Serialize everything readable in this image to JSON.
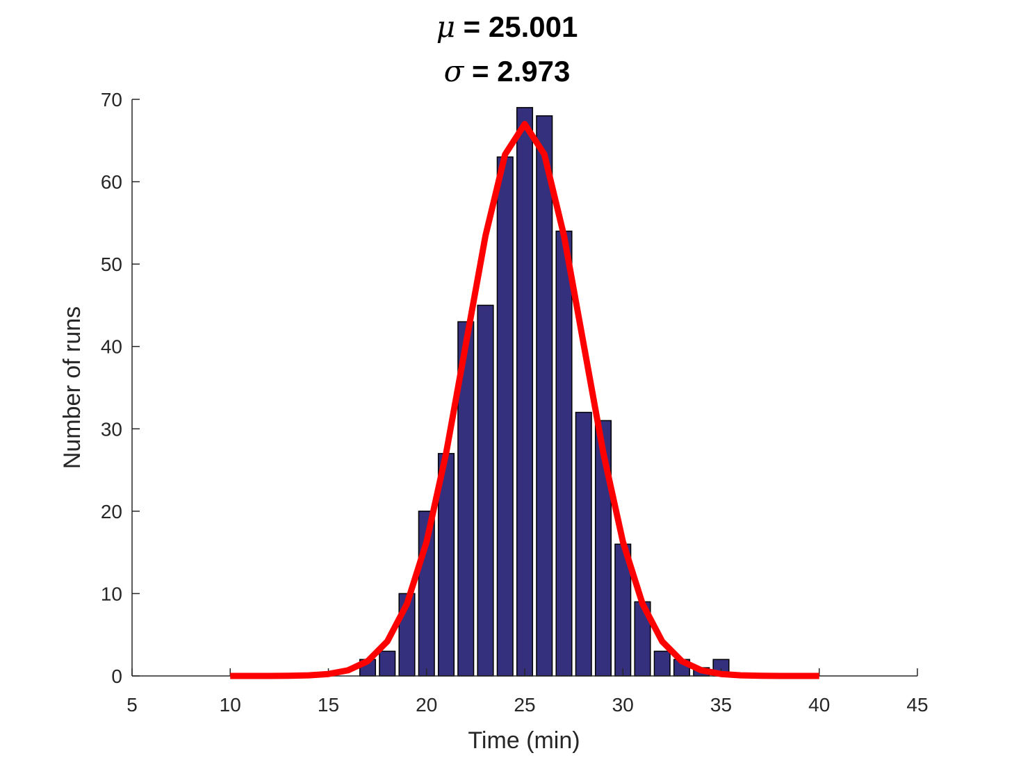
{
  "title": {
    "line1_symbol": "μ",
    "line1_text": " = 25.001",
    "line2_symbol": "σ",
    "line2_text": " = 2.973"
  },
  "chart_data": {
    "type": "bar",
    "subtype": "histogram with fitted normal curve",
    "xlabel": "Time (min)",
    "ylabel": "Number of runs",
    "xlim": [
      5,
      45
    ],
    "ylim": [
      0,
      70
    ],
    "xticks": [
      5,
      10,
      15,
      20,
      25,
      30,
      35,
      40,
      45
    ],
    "yticks": [
      0,
      10,
      20,
      30,
      40,
      50,
      60,
      70
    ],
    "grid": false,
    "bins": {
      "centers": [
        10,
        11,
        12,
        13,
        14,
        15,
        16,
        17,
        18,
        19,
        20,
        21,
        22,
        23,
        24,
        25,
        26,
        27,
        28,
        29,
        30,
        31,
        32,
        33,
        34,
        35,
        36,
        37,
        38,
        39,
        40
      ],
      "counts": [
        0,
        0,
        0,
        0,
        0,
        0,
        0,
        2,
        3,
        10,
        20,
        27,
        43,
        45,
        63,
        69,
        68,
        54,
        32,
        31,
        16,
        9,
        3,
        2,
        1,
        2,
        0,
        0,
        0,
        0,
        0
      ],
      "width": 0.8
    },
    "series": [
      {
        "type": "line",
        "mean": 25.001,
        "std": 2.973,
        "peak": 67,
        "x_start": 10,
        "x_end": 40
      }
    ],
    "colors": {
      "bar_fill": "#35307d",
      "bar_edge": "#000000",
      "curve": "#ff0000",
      "axis": "#262626"
    }
  }
}
